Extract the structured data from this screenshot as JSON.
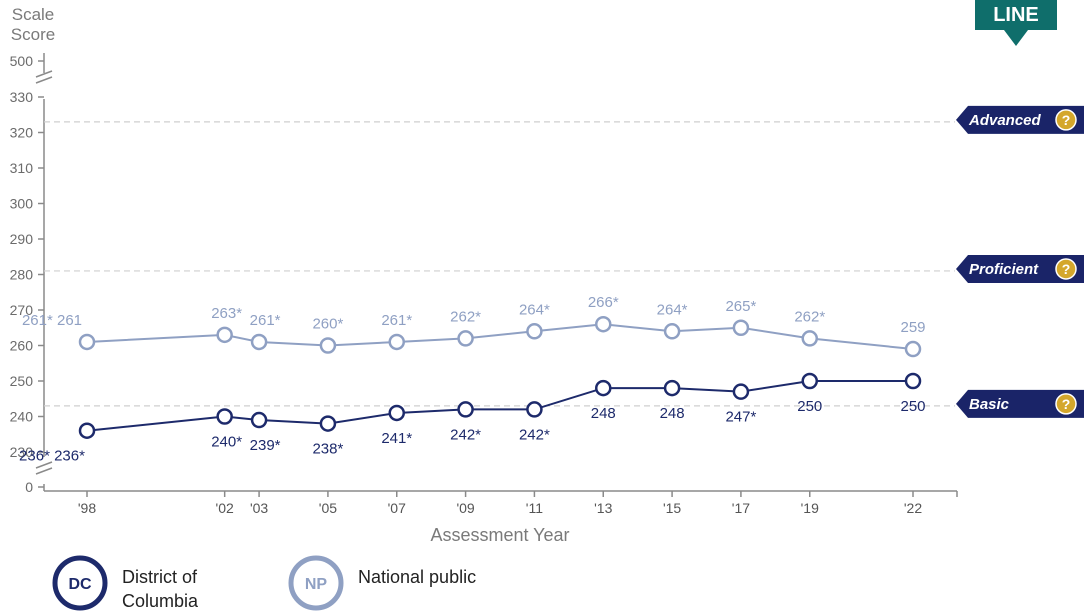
{
  "chart_data": {
    "type": "line",
    "ylabel": [
      "Scale",
      "Score"
    ],
    "xlabel": "Assessment Year",
    "y_axis_break": {
      "lower": 0,
      "upper": 500
    },
    "ylim": [
      230,
      330
    ],
    "yticks": [
      230,
      240,
      250,
      260,
      270,
      280,
      290,
      300,
      310,
      320,
      330
    ],
    "categories": [
      "'98",
      "'02",
      "'03",
      "'05",
      "'07",
      "'09",
      "'11",
      "'13",
      "'15",
      "'17",
      "'19",
      "'22"
    ],
    "series": [
      {
        "name": "District of Columbia",
        "abbr": "DC",
        "color": "#1d2a6b",
        "values": [
          236,
          240,
          239,
          238,
          241,
          242,
          242,
          248,
          248,
          247,
          250,
          250
        ],
        "labels": [
          "236* 236*",
          "240*",
          "239*",
          "238*",
          "241*",
          "242*",
          "242*",
          "248",
          "248",
          "247*",
          "250",
          "250"
        ]
      },
      {
        "name": "National public",
        "abbr": "NP",
        "color": "#8fa0c3",
        "values": [
          261,
          263,
          261,
          260,
          261,
          262,
          264,
          266,
          264,
          265,
          262,
          259
        ],
        "labels": [
          "261* 261",
          "263*",
          "261*",
          "260*",
          "261*",
          "262*",
          "264*",
          "266*",
          "264*",
          "265*",
          "262*",
          "259"
        ]
      }
    ],
    "achievement_levels": [
      {
        "name": "Advanced",
        "value": 323
      },
      {
        "name": "Proficient",
        "value": 281
      },
      {
        "name": "Basic",
        "value": 243
      }
    ],
    "help_icon": "question-mark-icon",
    "view_button": "LINE",
    "grid": false,
    "legend_position": "bottom-left"
  }
}
